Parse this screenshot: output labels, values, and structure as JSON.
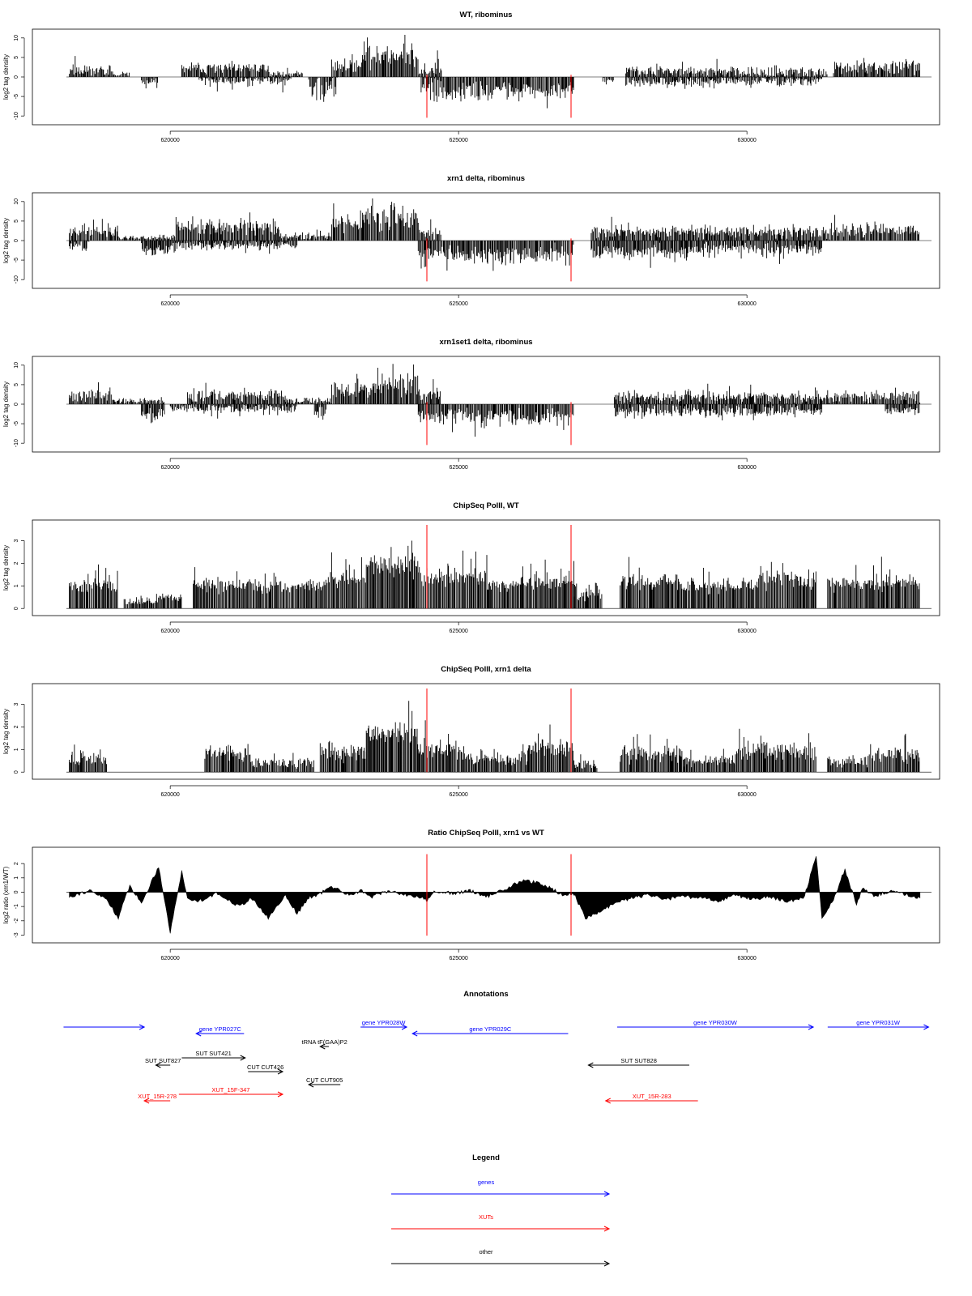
{
  "colors": {
    "blue": "#0000ff",
    "red": "#ff0000",
    "black": "#000000"
  },
  "marker_positions": [
    624450,
    626950
  ],
  "chart_data": [
    {
      "type": "bar",
      "title": "WT, ribominus",
      "ylabel": "log2 tag density",
      "xlim": [
        618200,
        633200
      ],
      "ylim": [
        -11,
        11
      ],
      "yticks": [
        -10,
        -5,
        0,
        5,
        10
      ],
      "xticks": [
        "620000",
        "625000",
        "630000"
      ],
      "xtick_values": [
        620000,
        625000,
        630000
      ],
      "seed": 11,
      "series": [
        {
          "strand": "+",
          "segments": [
            [
              618250,
              619000,
              1.8,
              1.3
            ],
            [
              619000,
              619300,
              0.6,
              0.6
            ],
            [
              620200,
              621700,
              2.2,
              1.2
            ],
            [
              621700,
              622300,
              0.8,
              0.6
            ],
            [
              622800,
              623300,
              3.0,
              2.0
            ],
            [
              623300,
              624300,
              5.5,
              3.0
            ],
            [
              624300,
              624700,
              1.8,
              1.5
            ],
            [
              627900,
              629200,
              1.5,
              1.1
            ],
            [
              629200,
              631400,
              1.2,
              1.2
            ],
            [
              631500,
              633000,
              2.4,
              1.4
            ]
          ]
        },
        {
          "strand": "-",
          "segments": [
            [
              619500,
              619800,
              1.5,
              1.5
            ],
            [
              620500,
              622100,
              0.9,
              1.2
            ],
            [
              622400,
              622900,
              2.5,
              3.0
            ],
            [
              624350,
              624800,
              3.0,
              2.5
            ],
            [
              624800,
              627000,
              3.5,
              2.0
            ],
            [
              627500,
              627700,
              1.0,
              1.2
            ],
            [
              627900,
              629500,
              1.3,
              1.4
            ],
            [
              629500,
              631300,
              1.0,
              1.2
            ]
          ]
        }
      ]
    },
    {
      "type": "bar",
      "title": "xrn1 delta, ribominus",
      "ylabel": "log2 tag density",
      "xlim": [
        618200,
        633200
      ],
      "ylim": [
        -11,
        11
      ],
      "yticks": [
        -10,
        -5,
        0,
        5,
        10
      ],
      "xticks": [
        "620000",
        "625000",
        "630000"
      ],
      "xtick_values": [
        620000,
        625000,
        630000
      ],
      "seed": 23,
      "series": [
        {
          "strand": "+",
          "segments": [
            [
              618250,
              619100,
              2.5,
              1.5
            ],
            [
              619100,
              620100,
              0.8,
              0.6
            ],
            [
              620100,
              621900,
              3.3,
              1.6
            ],
            [
              621900,
              622800,
              1.0,
              0.8
            ],
            [
              622800,
              623300,
              4.5,
              2.0
            ],
            [
              623300,
              624300,
              6.0,
              2.8
            ],
            [
              624300,
              624700,
              2.5,
              1.6
            ],
            [
              627300,
              628800,
              2.2,
              1.3
            ],
            [
              628800,
              631400,
              2.3,
              1.4
            ],
            [
              631400,
              633000,
              2.6,
              1.5
            ]
          ]
        },
        {
          "strand": "-",
          "segments": [
            [
              618250,
              618600,
              1.5,
              1.0
            ],
            [
              619500,
              620000,
              2.5,
              1.3
            ],
            [
              620000,
              622200,
              1.2,
              1.0
            ],
            [
              624300,
              624800,
              3.5,
              2.0
            ],
            [
              624800,
              627000,
              3.8,
              2.0
            ],
            [
              627300,
              629200,
              2.8,
              1.5
            ],
            [
              629200,
              631300,
              2.0,
              1.3
            ]
          ]
        }
      ]
    },
    {
      "type": "bar",
      "title": "xrn1set1 delta, ribominus",
      "ylabel": "log2 tag density",
      "xlim": [
        618200,
        633200
      ],
      "ylim": [
        -11,
        11
      ],
      "yticks": [
        -10,
        -5,
        0,
        5,
        10
      ],
      "xticks": [
        "620000",
        "625000",
        "630000"
      ],
      "xtick_values": [
        620000,
        625000,
        630000
      ],
      "seed": 37,
      "series": [
        {
          "strand": "+",
          "segments": [
            [
              618250,
              619000,
              2.3,
              1.5
            ],
            [
              619000,
              619900,
              0.8,
              0.6
            ],
            [
              620300,
              622000,
              2.2,
              1.3
            ],
            [
              622000,
              622800,
              1.0,
              0.8
            ],
            [
              622800,
              623300,
              3.3,
              2.0
            ],
            [
              623300,
              624300,
              4.8,
              2.8
            ],
            [
              624300,
              624700,
              2.2,
              1.5
            ],
            [
              627700,
              629300,
              1.8,
              1.2
            ],
            [
              629300,
              631400,
              1.9,
              1.3
            ],
            [
              631400,
              633000,
              2.0,
              1.3
            ]
          ]
        },
        {
          "strand": "-",
          "segments": [
            [
              619500,
              619900,
              2.5,
              1.2
            ],
            [
              620000,
              622200,
              1.1,
              1.0
            ],
            [
              622500,
              622700,
              2.5,
              2.0
            ],
            [
              624300,
              624800,
              3.0,
              2.0
            ],
            [
              624800,
              627000,
              3.2,
              1.8
            ],
            [
              627700,
              629300,
              2.0,
              1.3
            ],
            [
              629300,
              631300,
              1.8,
              1.2
            ],
            [
              632400,
              633000,
              1.5,
              1.0
            ]
          ]
        }
      ]
    },
    {
      "type": "bar",
      "title": "ChipSeq PolII, WT",
      "ylabel": "log2 tag density",
      "xlim": [
        618200,
        633200
      ],
      "ylim": [
        -0.1,
        3.7
      ],
      "yticks": [
        0,
        1,
        2,
        3
      ],
      "xticks": [
        "620000",
        "625000",
        "630000"
      ],
      "xtick_values": [
        620000,
        625000,
        630000
      ],
      "seed": 51,
      "series": [
        {
          "strand": "+",
          "segments": [
            [
              618250,
              619100,
              1.0,
              0.25
            ],
            [
              619200,
              619800,
              0.3,
              0.2
            ],
            [
              619800,
              620200,
              0.5,
              0.2
            ],
            [
              620400,
              622700,
              1.0,
              0.25
            ],
            [
              622700,
              623400,
              1.3,
              0.3
            ],
            [
              623400,
              624300,
              1.9,
              0.4
            ],
            [
              624300,
              625500,
              1.4,
              0.35
            ],
            [
              625500,
              626100,
              1.0,
              0.25
            ],
            [
              626100,
              627000,
              1.2,
              0.3
            ],
            [
              627000,
              627500,
              0.6,
              0.3
            ],
            [
              627800,
              628800,
              1.2,
              0.3
            ],
            [
              628800,
              630200,
              1.0,
              0.25
            ],
            [
              630200,
              631200,
              1.3,
              0.35
            ],
            [
              631400,
              633000,
              1.1,
              0.3
            ]
          ]
        }
      ]
    },
    {
      "type": "bar",
      "title": "ChipSeq PolII, xrn1 delta",
      "ylabel": "log2 tag density",
      "xlim": [
        618200,
        633200
      ],
      "ylim": [
        -0.1,
        3.7
      ],
      "yticks": [
        0,
        1,
        2,
        3
      ],
      "xticks": [
        "620000",
        "625000",
        "630000"
      ],
      "xtick_values": [
        620000,
        625000,
        630000
      ],
      "seed": 67,
      "series": [
        {
          "strand": "+",
          "segments": [
            [
              618250,
              618900,
              0.6,
              0.25
            ],
            [
              620600,
              621400,
              0.9,
              0.3
            ],
            [
              621400,
              622500,
              0.4,
              0.2
            ],
            [
              622600,
              623400,
              0.9,
              0.3
            ],
            [
              623400,
              624300,
              1.8,
              0.4
            ],
            [
              624300,
              625100,
              1.0,
              0.35
            ],
            [
              625100,
              626200,
              0.6,
              0.25
            ],
            [
              626200,
              627000,
              1.1,
              0.35
            ],
            [
              627000,
              627400,
              0.3,
              0.2
            ],
            [
              627800,
              628900,
              0.8,
              0.3
            ],
            [
              628900,
              629800,
              0.5,
              0.2
            ],
            [
              629800,
              631200,
              0.9,
              0.35
            ],
            [
              631400,
              632100,
              0.5,
              0.25
            ],
            [
              632100,
              633000,
              0.8,
              0.3
            ]
          ]
        }
      ]
    },
    {
      "type": "area",
      "title": "Ratio ChipSeq PolII, xrn1 vs WT",
      "ylabel": "log2 ratio (xrn1/WT)",
      "xlim": [
        618200,
        633200
      ],
      "ylim": [
        -3.2,
        2.8
      ],
      "yticks": [
        -3,
        -2,
        -1,
        0,
        1,
        2
      ],
      "xticks": [
        "620000",
        "625000",
        "630000"
      ],
      "xtick_values": [
        620000,
        625000,
        630000
      ],
      "x": [
        618250,
        618600,
        618900,
        619100,
        619300,
        619500,
        619800,
        620000,
        620200,
        620300,
        620500,
        620800,
        621000,
        621200,
        621400,
        621700,
        622000,
        622200,
        622400,
        622600,
        622800,
        623100,
        623300,
        623500,
        623800,
        624100,
        624300,
        624450,
        624600,
        624900,
        625200,
        625500,
        625800,
        626100,
        626300,
        626600,
        626800,
        627000,
        627200,
        627400,
        627700,
        628000,
        628300,
        628600,
        628900,
        629200,
        629500,
        629800,
        630100,
        630400,
        630700,
        631000,
        631200,
        631300,
        631500,
        631700,
        631900,
        632000,
        632200,
        632500,
        632800,
        633000
      ],
      "values": [
        -0.3,
        0.1,
        -0.5,
        -1.8,
        0.5,
        -0.8,
        1.8,
        -2.8,
        1.5,
        -0.5,
        -0.6,
        -0.1,
        -0.5,
        -1.0,
        -0.4,
        -1.8,
        -0.2,
        -1.5,
        -0.4,
        -0.1,
        0.4,
        -0.2,
        0.1,
        -0.3,
        0.1,
        -0.2,
        -0.3,
        -0.6,
        0.1,
        -0.1,
        0.1,
        -0.3,
        0.2,
        0.8,
        0.7,
        0.3,
        -0.2,
        -0.1,
        -1.8,
        -1.5,
        -0.8,
        -0.4,
        -0.2,
        -0.5,
        -0.3,
        -0.4,
        -0.6,
        -0.2,
        -0.5,
        -0.3,
        -0.7,
        -0.3,
        2.6,
        -1.8,
        -0.5,
        1.6,
        -0.9,
        0.3,
        -0.3,
        0.1,
        -0.2,
        -0.4
      ]
    }
  ],
  "annotations": {
    "title": "Annotations",
    "xlim": [
      618200,
      633200
    ],
    "features": [
      {
        "label": "",
        "start": 618150,
        "end": 619550,
        "dir": "right",
        "color": "blue",
        "row": 0
      },
      {
        "label": "gene YPR027C",
        "start": 620450,
        "end": 621280,
        "dir": "left",
        "color": "blue",
        "row": 1
      },
      {
        "label": "gene YPR028W",
        "start": 623300,
        "end": 624100,
        "dir": "right",
        "color": "blue",
        "row": 0
      },
      {
        "label": "gene YPR029C",
        "start": 624200,
        "end": 626900,
        "dir": "left",
        "color": "blue",
        "row": 1
      },
      {
        "label": "gene YPR030W",
        "start": 627750,
        "end": 631150,
        "dir": "right",
        "color": "blue",
        "row": 0
      },
      {
        "label": "gene YPR031W",
        "start": 631400,
        "end": 633150,
        "dir": "right",
        "color": "blue",
        "row": 0
      },
      {
        "label": "tRNA tF(GAA)P2",
        "start": 622600,
        "end": 622750,
        "dir": "left",
        "color": "black",
        "row": 2
      },
      {
        "label": "SUT SUT421",
        "start": 620200,
        "end": 621300,
        "dir": "right",
        "color": "black",
        "row": 3
      },
      {
        "label": "SUT SUT827",
        "start": 619750,
        "end": 620000,
        "dir": "left",
        "color": "black",
        "row": 4
      },
      {
        "label": "CUT CUT426",
        "start": 621350,
        "end": 621950,
        "dir": "right",
        "color": "black",
        "row": 5
      },
      {
        "label": "CUT CUT905",
        "start": 622400,
        "end": 622950,
        "dir": "left",
        "color": "black",
        "row": 6
      },
      {
        "label": "SUT SUT828",
        "start": 627250,
        "end": 629000,
        "dir": "left",
        "color": "black",
        "row": 4
      },
      {
        "label": "XUT_15F-347",
        "start": 620150,
        "end": 621950,
        "dir": "right",
        "color": "red",
        "row": 7
      },
      {
        "label": "XUT_15R-278",
        "start": 619550,
        "end": 620000,
        "dir": "left",
        "color": "red",
        "row": 8
      },
      {
        "label": "XUT_15R-283",
        "start": 627550,
        "end": 629150,
        "dir": "left",
        "color": "red",
        "row": 8
      }
    ]
  },
  "legend": {
    "title": "Legend",
    "items": [
      {
        "label": "genes",
        "color": "blue"
      },
      {
        "label": "XUTs",
        "color": "red"
      },
      {
        "label": "other",
        "color": "black"
      }
    ]
  }
}
